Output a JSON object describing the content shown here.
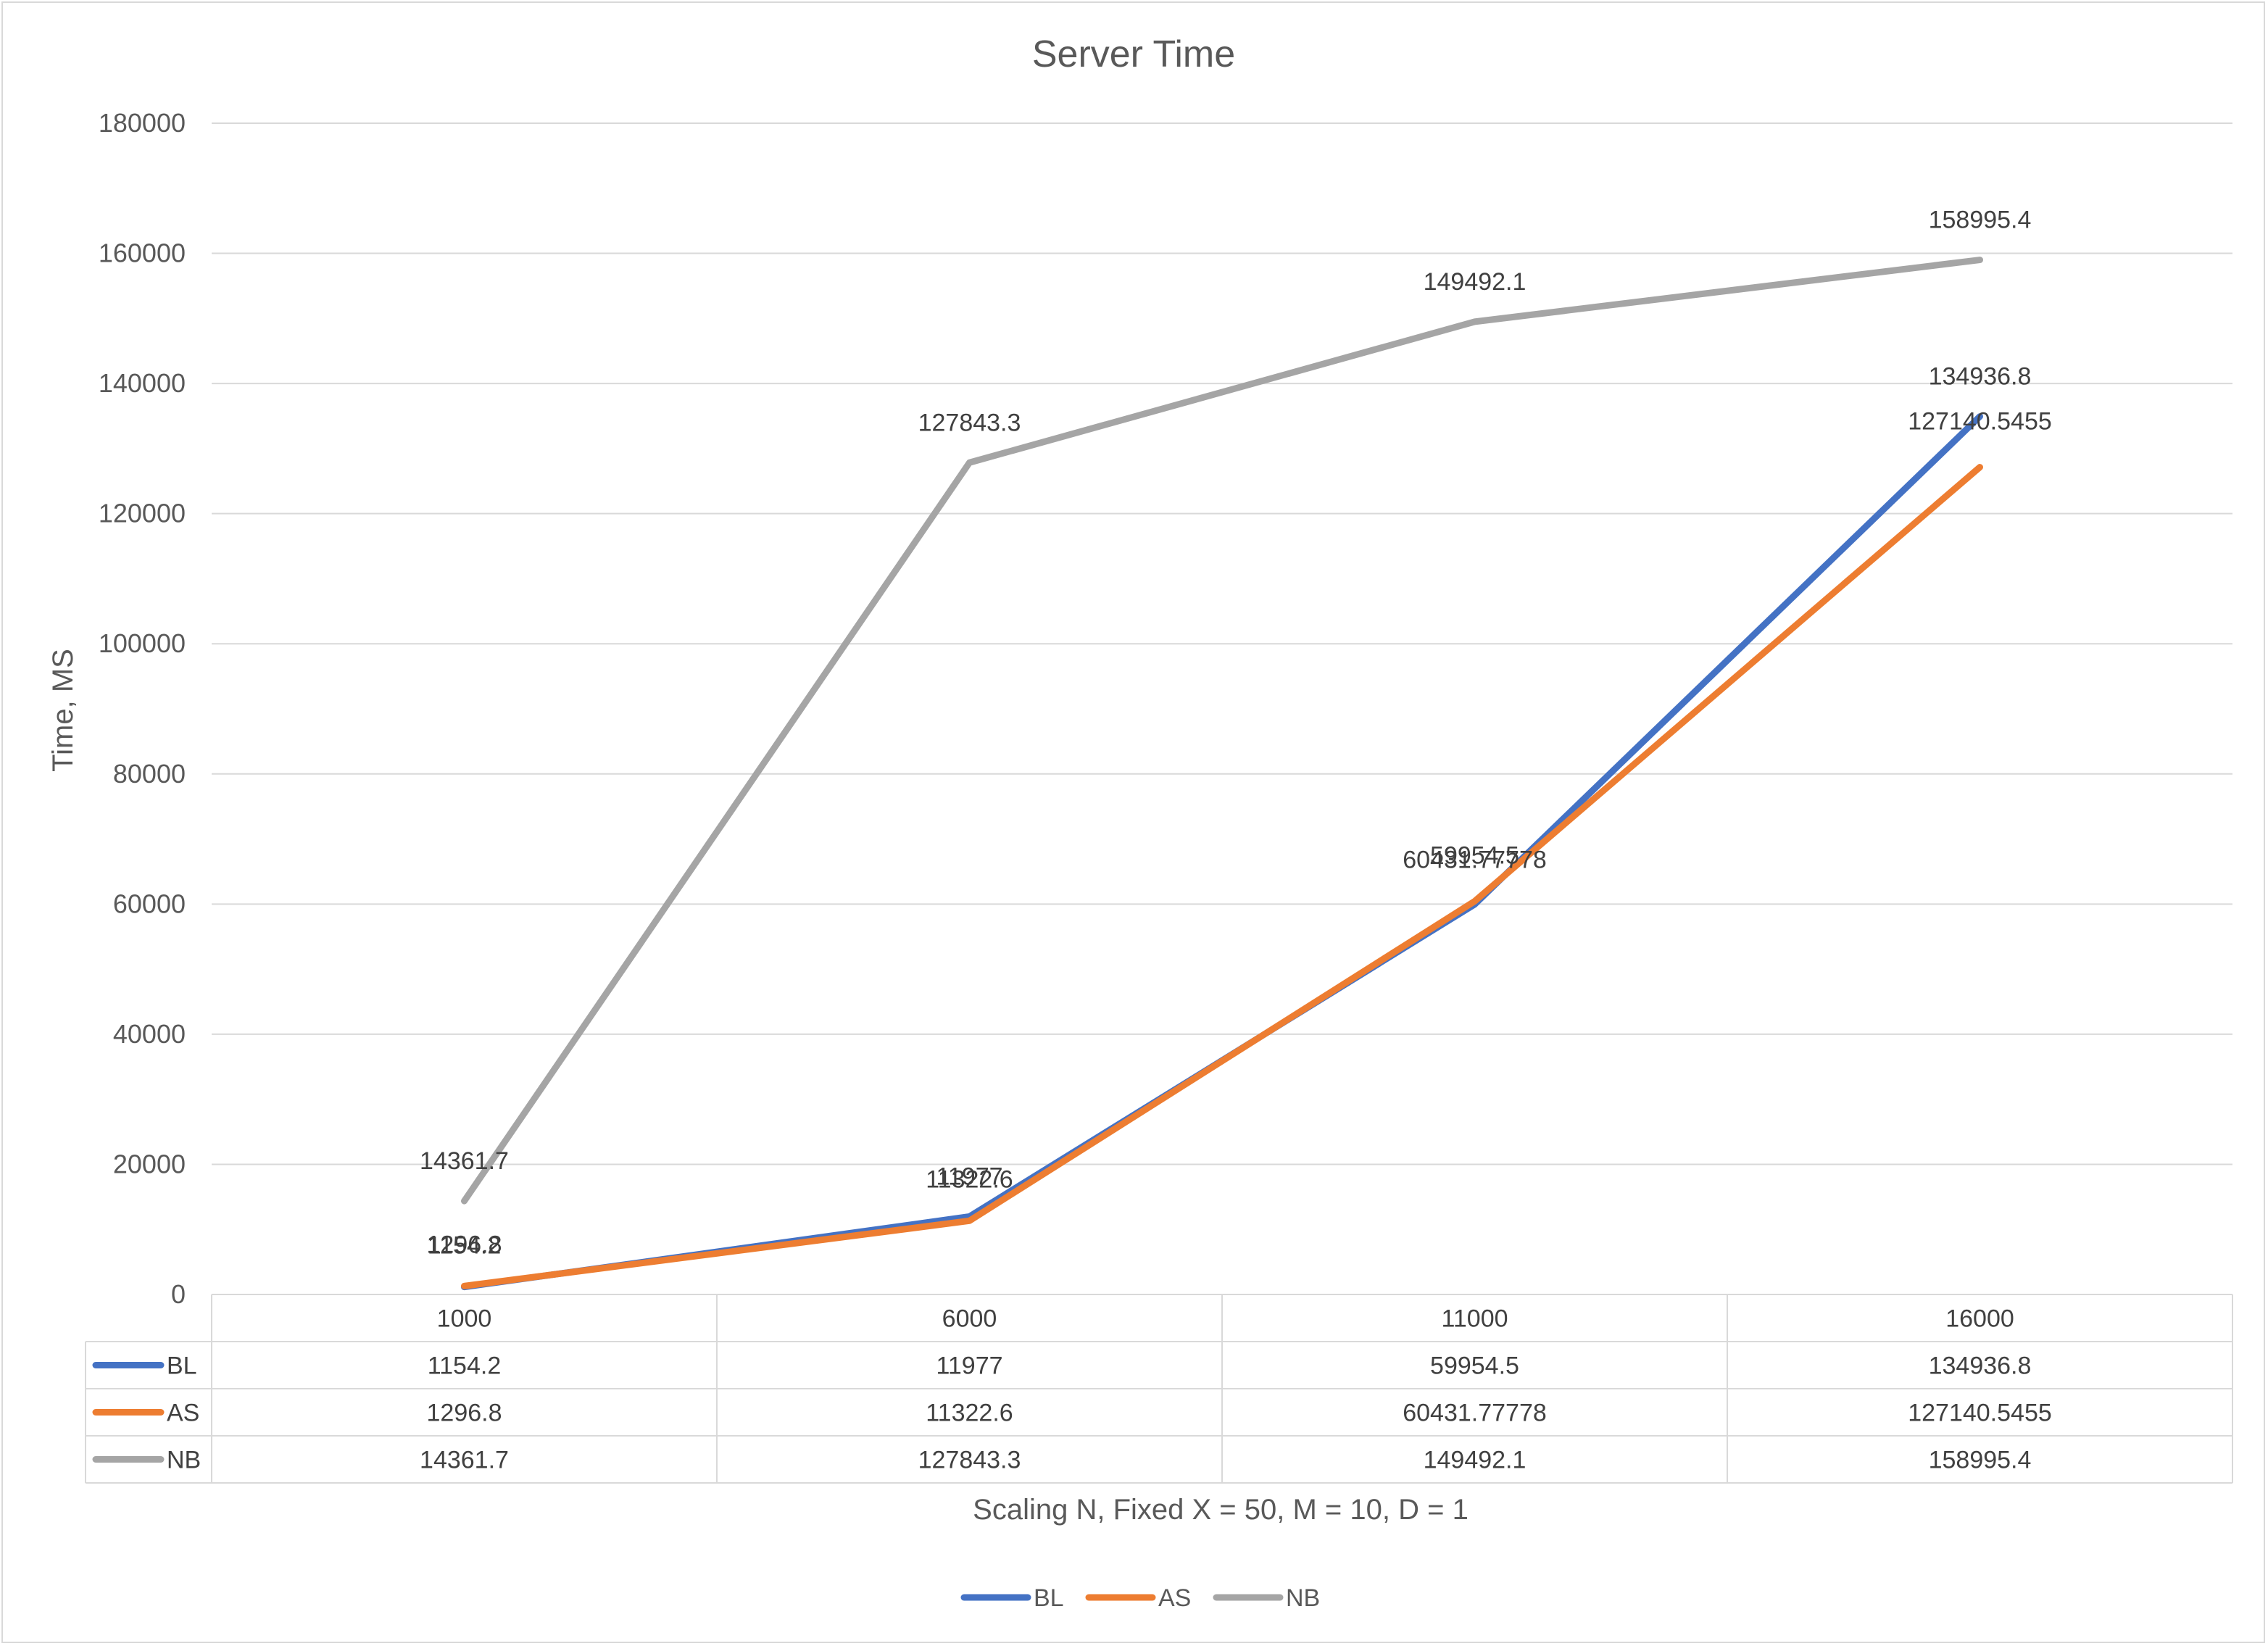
{
  "chart_data": {
    "type": "line",
    "title": "Server Time",
    "xlabel": "Scaling N, Fixed X = 50, M = 10, D = 1",
    "ylabel": "Time, MS",
    "categories": [
      "1000",
      "6000",
      "11000",
      "16000"
    ],
    "ylim": [
      0,
      180000
    ],
    "yticks": [
      0,
      20000,
      40000,
      60000,
      80000,
      100000,
      120000,
      140000,
      160000,
      180000
    ],
    "grid": true,
    "legend": "bottom",
    "data_table": true,
    "series": [
      {
        "name": "BL",
        "color": "#4472c4",
        "values": [
          1154.2,
          11977,
          59954.5,
          134936.8
        ],
        "labels": [
          "1154.2",
          "11977",
          "59954.5",
          "134936.8"
        ]
      },
      {
        "name": "AS",
        "color": "#ed7d31",
        "values": [
          1296.8,
          11322.6,
          60431.77778,
          127140.5455
        ],
        "labels": [
          "1296.8",
          "11322.6",
          "60431.77778",
          "127140.5455"
        ]
      },
      {
        "name": "NB",
        "color": "#a5a5a5",
        "values": [
          14361.7,
          127843.3,
          149492.1,
          158995.4
        ],
        "labels": [
          "14361.7",
          "127843.3",
          "149492.1",
          "158995.4"
        ]
      }
    ]
  }
}
